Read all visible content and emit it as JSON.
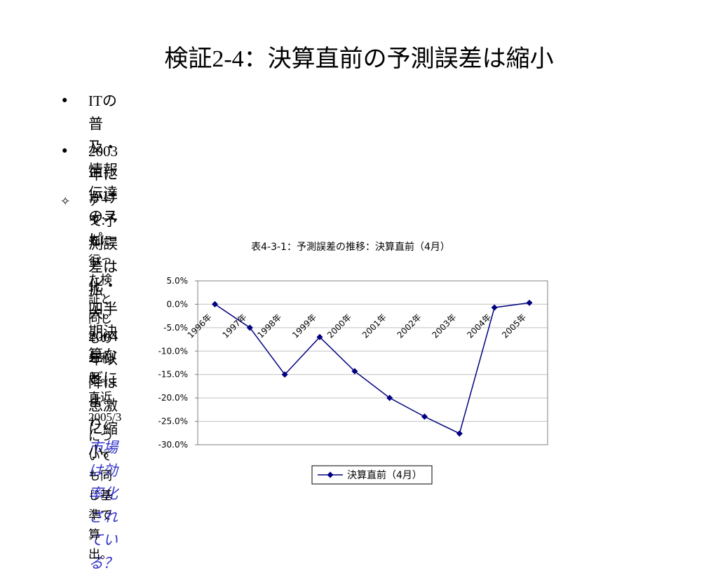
{
  "slide": {
    "title_prefix": "検証",
    "title_code": "2-4",
    "title_sep": "：",
    "title_main": "決算直前の予測誤差は縮小",
    "bullet_symbol": "•",
    "note_symbol": "✧",
    "bullet1": {
      "lead": "IT",
      "text_line1": "の普及・情報伝達のスピード化・四半期決算などにより、",
      "emph_line1": "市場",
      "emph_line2": "は効率化されている？"
    },
    "bullet2": {
      "year1": "2003",
      "text1": "年にかけて予測誤差は拡大。",
      "year2": "2004",
      "text2": "年以降は急激に縮小。"
    },
    "note": {
      "text1": "データ：先に行った検証と同じものを利用。直近",
      "date": "2005/3",
      "text2": "についても同じ基準で算出。"
    }
  },
  "chart_data": {
    "type": "line",
    "title": "表4-3-1：予測誤差の推移：決算直前（4月）",
    "categories": [
      "1996年",
      "1997年",
      "1998年",
      "1999年",
      "2000年",
      "2001年",
      "2002年",
      "2003年",
      "2004年",
      "2005年"
    ],
    "series": [
      {
        "name": "決算直前（4月）",
        "color": "#000080",
        "values": [
          0.0,
          -5.0,
          -15.0,
          -7.0,
          -14.3,
          -20.0,
          -24.0,
          -27.6,
          -0.7,
          0.3
        ]
      }
    ],
    "yticks": [
      "5.0%",
      "0.0%",
      "-5.0%",
      "-10.0%",
      "-15.0%",
      "-20.0%",
      "-25.0%",
      "-30.0%"
    ],
    "ylim": [
      -30,
      5
    ],
    "grid": true,
    "legend": "bottom",
    "label_color": "#000000",
    "grid_color": "#c0c0c0"
  }
}
